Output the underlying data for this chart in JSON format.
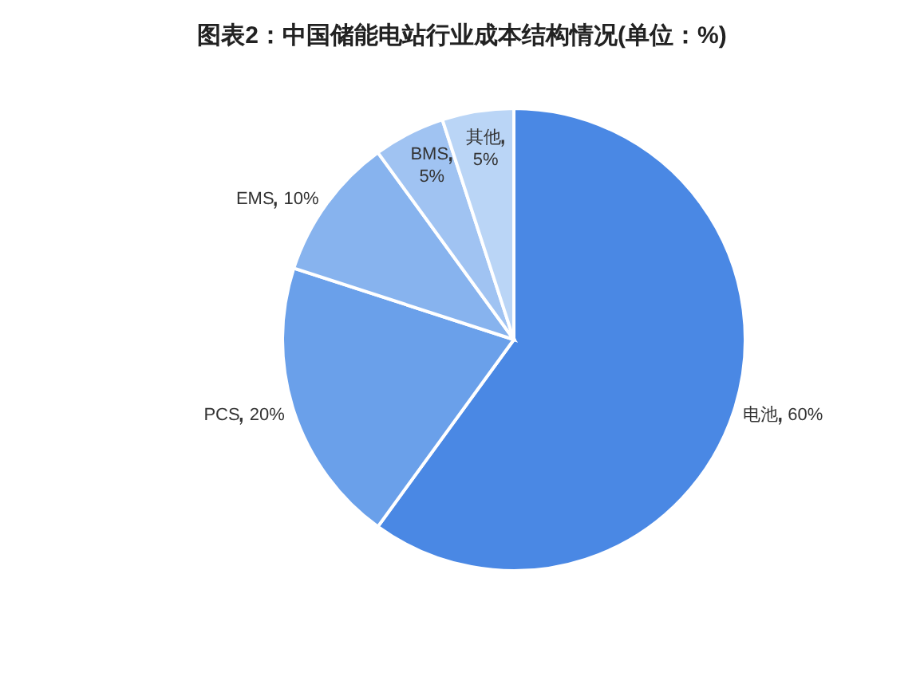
{
  "chart_data": {
    "type": "pie",
    "title": "图表2：中国储能电站行业成本结构情况(单位：%)",
    "categories": [
      "电池",
      "PCS",
      "EMS",
      "BMS",
      "其他"
    ],
    "values": [
      60,
      20,
      10,
      5,
      5
    ],
    "colors": [
      "#4a88e4",
      "#6aa0ea",
      "#87b3ee",
      "#a0c3f2",
      "#bad5f6"
    ],
    "value_labels": [
      "60%",
      "20%",
      "10%",
      "5%",
      "5%"
    ]
  }
}
